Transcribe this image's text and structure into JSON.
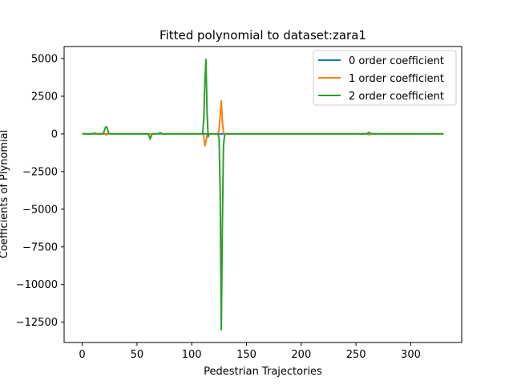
{
  "chart_data": {
    "type": "line",
    "title": "Fitted polynomial to dataset:zara1",
    "xlabel": "Pedestrian Trajectories",
    "ylabel": "Coefficients of Plynomial",
    "xlim": [
      -16.5,
      346.5
    ],
    "ylim": [
      -13850,
      5800
    ],
    "xticks": [
      0,
      50,
      100,
      150,
      200,
      250,
      300
    ],
    "yticks": [
      -12500,
      -10000,
      -7500,
      -5000,
      -2500,
      0,
      2500,
      5000
    ],
    "xtick_labels": [
      "0",
      "50",
      "100",
      "150",
      "200",
      "250",
      "300"
    ],
    "ytick_labels": [
      "−12500",
      "−10000",
      "−7500",
      "−5000",
      "−2500",
      "0",
      "2500",
      "5000"
    ],
    "grid": false,
    "legend_position": "top-right",
    "series": [
      {
        "name": "0 order coefficient",
        "color": "#1f77b4",
        "x": [
          0,
          330
        ],
        "y": [
          0,
          0
        ]
      },
      {
        "name": "1 order coefficient",
        "color": "#ff7f0e",
        "x": [
          0,
          20,
          21,
          22,
          23,
          24,
          110,
          111,
          112,
          113,
          114,
          115,
          124,
          125,
          126,
          127,
          128,
          129,
          130,
          260,
          261,
          262,
          263,
          264,
          330
        ],
        "y": [
          0,
          0,
          -20,
          -60,
          -30,
          0,
          0,
          -150,
          -800,
          -500,
          -100,
          0,
          0,
          300,
          1200,
          2200,
          800,
          100,
          0,
          0,
          -30,
          -60,
          -20,
          0,
          0
        ]
      },
      {
        "name": "2 order coefficient",
        "color": "#2ca02c",
        "x": [
          0,
          10,
          11,
          12,
          13,
          19,
          20,
          21,
          22,
          23,
          24,
          25,
          60,
          61,
          62,
          63,
          64,
          70,
          71,
          72,
          73,
          110,
          111,
          112,
          113,
          114,
          115,
          116,
          124,
          125,
          126,
          127,
          128,
          129,
          130,
          131,
          260,
          261,
          262,
          263,
          264,
          330
        ],
        "y": [
          0,
          0,
          60,
          40,
          0,
          0,
          150,
          400,
          480,
          350,
          80,
          0,
          0,
          -100,
          -350,
          -150,
          0,
          0,
          90,
          50,
          0,
          0,
          1000,
          3500,
          4950,
          1500,
          -200,
          0,
          0,
          -300,
          -4000,
          -13000,
          -6000,
          -800,
          -100,
          0,
          0,
          60,
          100,
          40,
          0,
          0
        ]
      }
    ]
  }
}
